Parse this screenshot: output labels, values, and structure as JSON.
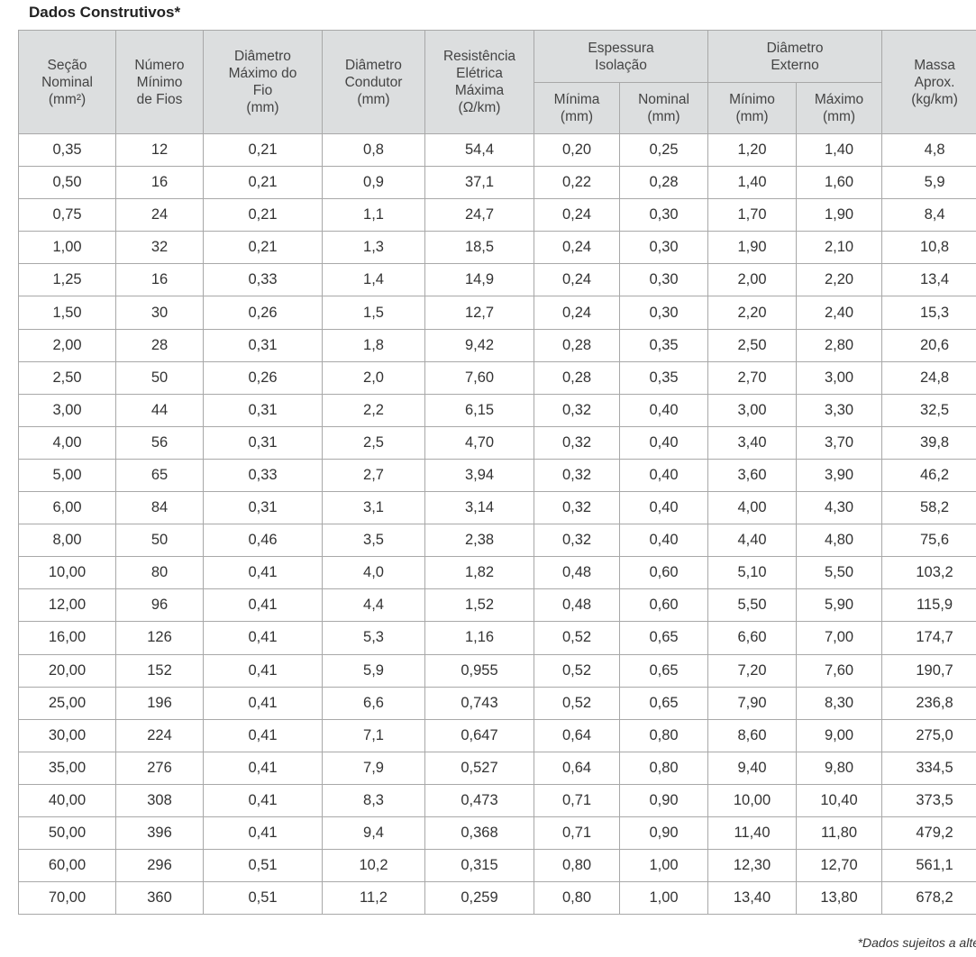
{
  "title": "Dados Construtivos*",
  "table": {
    "header": [
      {
        "label": "Seção\nNominal\n(mm²)"
      },
      {
        "label": "Número\nMínimo\nde Fios"
      },
      {
        "label": "Diâmetro\nMáximo do\nFio\n(mm)"
      },
      {
        "label": "Diâmetro\nCondutor\n(mm)"
      },
      {
        "label": "Resistência\nElétrica\nMáxima\n(Ω/km)"
      },
      {
        "label": "Espessura\nIsolação",
        "sub": [
          "Mínima\n(mm)",
          "Nominal\n(mm)"
        ]
      },
      {
        "label": "Diâmetro\nExterno",
        "sub": [
          "Mínimo\n(mm)",
          "Máximo\n(mm)"
        ]
      },
      {
        "label": "Massa\nAprox.\n(kg/km)"
      }
    ],
    "rows": [
      [
        "0,35",
        "12",
        "0,21",
        "0,8",
        "54,4",
        "0,20",
        "0,25",
        "1,20",
        "1,40",
        "4,8"
      ],
      [
        "0,50",
        "16",
        "0,21",
        "0,9",
        "37,1",
        "0,22",
        "0,28",
        "1,40",
        "1,60",
        "5,9"
      ],
      [
        "0,75",
        "24",
        "0,21",
        "1,1",
        "24,7",
        "0,24",
        "0,30",
        "1,70",
        "1,90",
        "8,4"
      ],
      [
        "1,00",
        "32",
        "0,21",
        "1,3",
        "18,5",
        "0,24",
        "0,30",
        "1,90",
        "2,10",
        "10,8"
      ],
      [
        "1,25",
        "16",
        "0,33",
        "1,4",
        "14,9",
        "0,24",
        "0,30",
        "2,00",
        "2,20",
        "13,4"
      ],
      [
        "1,50",
        "30",
        "0,26",
        "1,5",
        "12,7",
        "0,24",
        "0,30",
        "2,20",
        "2,40",
        "15,3"
      ],
      [
        "2,00",
        "28",
        "0,31",
        "1,8",
        "9,42",
        "0,28",
        "0,35",
        "2,50",
        "2,80",
        "20,6"
      ],
      [
        "2,50",
        "50",
        "0,26",
        "2,0",
        "7,60",
        "0,28",
        "0,35",
        "2,70",
        "3,00",
        "24,8"
      ],
      [
        "3,00",
        "44",
        "0,31",
        "2,2",
        "6,15",
        "0,32",
        "0,40",
        "3,00",
        "3,30",
        "32,5"
      ],
      [
        "4,00",
        "56",
        "0,31",
        "2,5",
        "4,70",
        "0,32",
        "0,40",
        "3,40",
        "3,70",
        "39,8"
      ],
      [
        "5,00",
        "65",
        "0,33",
        "2,7",
        "3,94",
        "0,32",
        "0,40",
        "3,60",
        "3,90",
        "46,2"
      ],
      [
        "6,00",
        "84",
        "0,31",
        "3,1",
        "3,14",
        "0,32",
        "0,40",
        "4,00",
        "4,30",
        "58,2"
      ],
      [
        "8,00",
        "50",
        "0,46",
        "3,5",
        "2,38",
        "0,32",
        "0,40",
        "4,40",
        "4,80",
        "75,6"
      ],
      [
        "10,00",
        "80",
        "0,41",
        "4,0",
        "1,82",
        "0,48",
        "0,60",
        "5,10",
        "5,50",
        "103,2"
      ],
      [
        "12,00",
        "96",
        "0,41",
        "4,4",
        "1,52",
        "0,48",
        "0,60",
        "5,50",
        "5,90",
        "115,9"
      ],
      [
        "16,00",
        "126",
        "0,41",
        "5,3",
        "1,16",
        "0,52",
        "0,65",
        "6,60",
        "7,00",
        "174,7"
      ],
      [
        "20,00",
        "152",
        "0,41",
        "5,9",
        "0,955",
        "0,52",
        "0,65",
        "7,20",
        "7,60",
        "190,7"
      ],
      [
        "25,00",
        "196",
        "0,41",
        "6,6",
        "0,743",
        "0,52",
        "0,65",
        "7,90",
        "8,30",
        "236,8"
      ],
      [
        "30,00",
        "224",
        "0,41",
        "7,1",
        "0,647",
        "0,64",
        "0,80",
        "8,60",
        "9,00",
        "275,0"
      ],
      [
        "35,00",
        "276",
        "0,41",
        "7,9",
        "0,527",
        "0,64",
        "0,80",
        "9,40",
        "9,80",
        "334,5"
      ],
      [
        "40,00",
        "308",
        "0,41",
        "8,3",
        "0,473",
        "0,71",
        "0,90",
        "10,00",
        "10,40",
        "373,5"
      ],
      [
        "50,00",
        "396",
        "0,41",
        "9,4",
        "0,368",
        "0,71",
        "0,90",
        "11,40",
        "11,80",
        "479,2"
      ],
      [
        "60,00",
        "296",
        "0,51",
        "10,2",
        "0,315",
        "0,80",
        "1,00",
        "12,30",
        "12,70",
        "561,1"
      ],
      [
        "70,00",
        "360",
        "0,51",
        "11,2",
        "0,259",
        "0,80",
        "1,00",
        "13,40",
        "13,80",
        "678,2"
      ]
    ]
  },
  "footnote": "*Dados sujeitos a alte"
}
